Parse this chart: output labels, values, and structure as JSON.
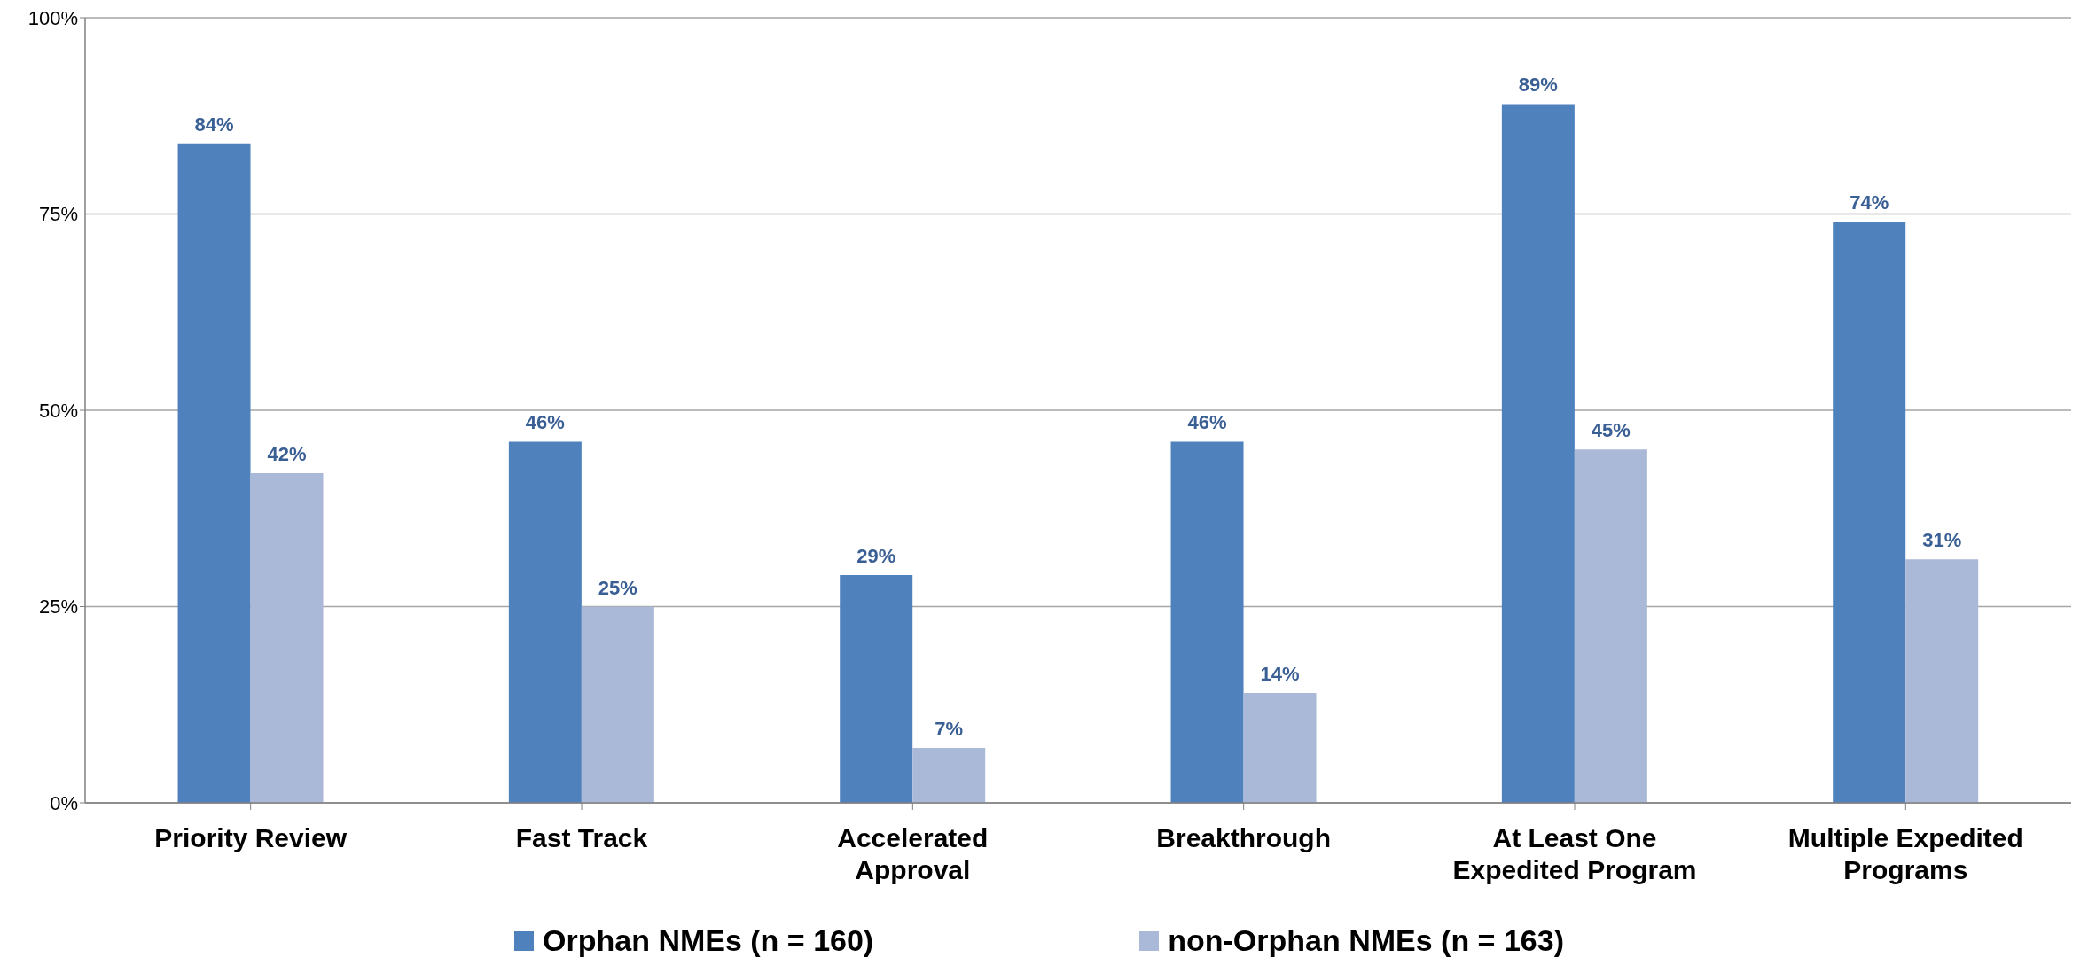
{
  "chart_data": {
    "type": "bar",
    "categories": [
      "Priority Review",
      "Fast Track",
      "Accelerated Approval",
      "Breakthrough",
      "At Least One Expedited Program",
      "Multiple Expedited Programs"
    ],
    "series": [
      {
        "name": "Orphan NMEs (n = 160)",
        "color": "#4f81bd",
        "values": [
          84,
          46,
          29,
          46,
          89,
          74
        ],
        "value_labels": [
          "84%",
          "46%",
          "29%",
          "46%",
          "89%",
          "74%"
        ]
      },
      {
        "name": "non-Orphan NMEs  (n = 163)",
        "color": "#aab9d7",
        "values": [
          42,
          25,
          7,
          14,
          45,
          31
        ],
        "value_labels": [
          "42%",
          "25%",
          "7%",
          "14%",
          "45%",
          "31%"
        ]
      }
    ],
    "ylim": [
      0,
      100
    ],
    "yticks": [
      {
        "value": 0,
        "label": "0%"
      },
      {
        "value": 25,
        "label": "25%"
      },
      {
        "value": 50,
        "label": "50%"
      },
      {
        "value": 75,
        "label": "75%"
      },
      {
        "value": 100,
        "label": "100%"
      }
    ],
    "grid": "y",
    "legend": "bottom"
  }
}
